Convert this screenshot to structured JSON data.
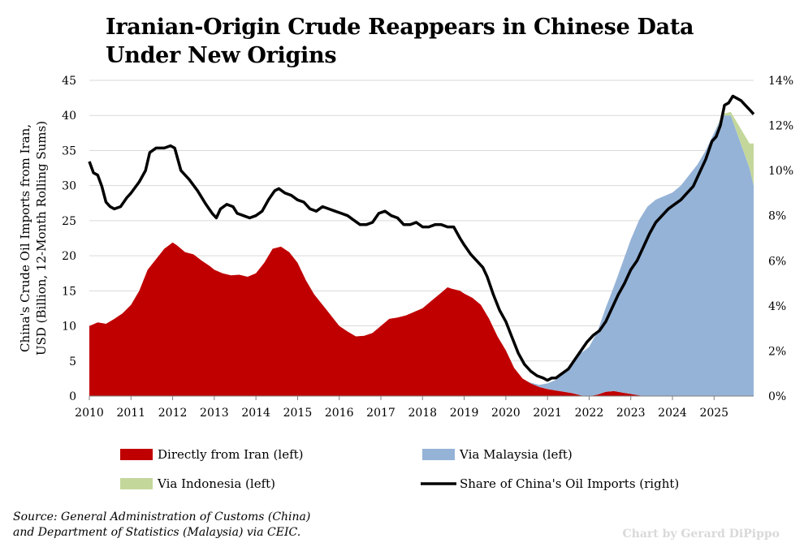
{
  "chart_data": {
    "type": "area",
    "title": "Iranian-Origin Crude Reappears in Chinese Data Under New Origins",
    "ylabel_left_line1": "China's Crude Oil Imports from Iran,",
    "ylabel_left_line2": "USD (Billion, 12-Month Rolling Sums)",
    "ylim_left": [
      0,
      45
    ],
    "ylim_right": [
      0,
      14
    ],
    "left_ticks": [
      "0",
      "5",
      "10",
      "15",
      "20",
      "25",
      "30",
      "35",
      "40",
      "45"
    ],
    "right_ticks": [
      "0%",
      "2%",
      "4%",
      "6%",
      "8%",
      "10%",
      "12%",
      "14%"
    ],
    "x_ticks": [
      "2010",
      "2011",
      "2012",
      "2013",
      "2014",
      "2015",
      "2016",
      "2017",
      "2018",
      "2019",
      "2020",
      "2021",
      "2022",
      "2023",
      "2024",
      "2025"
    ],
    "xlim": [
      2010.0,
      2025.95
    ],
    "grid": "horizontal",
    "legend_position": "bottom",
    "series": [
      {
        "name": "Directly from Iran (left)",
        "kind": "area",
        "axis": "left",
        "color": "#c00000",
        "x": [
          2010.0,
          2010.2,
          2010.4,
          2010.6,
          2010.8,
          2011.0,
          2011.2,
          2011.4,
          2011.6,
          2011.8,
          2012.0,
          2012.1,
          2012.3,
          2012.5,
          2012.7,
          2012.9,
          2013.0,
          2013.2,
          2013.4,
          2013.6,
          2013.8,
          2014.0,
          2014.2,
          2014.4,
          2014.6,
          2014.8,
          2015.0,
          2015.2,
          2015.4,
          2015.6,
          2015.8,
          2016.0,
          2016.2,
          2016.4,
          2016.6,
          2016.8,
          2017.0,
          2017.2,
          2017.4,
          2017.6,
          2017.8,
          2018.0,
          2018.2,
          2018.4,
          2018.6,
          2018.7,
          2018.9,
          2019.0,
          2019.2,
          2019.4,
          2019.6,
          2019.8,
          2020.0,
          2020.2,
          2020.4,
          2020.6,
          2020.8,
          2021.0,
          2021.2,
          2021.4,
          2021.6,
          2021.8,
          2022.0,
          2022.2,
          2022.4,
          2022.6,
          2022.8,
          2023.0,
          2023.2,
          2023.4,
          2024.0,
          2025.0,
          2025.95
        ],
        "values": [
          10.0,
          10.5,
          10.3,
          11.0,
          11.8,
          13.0,
          15.0,
          18.0,
          19.5,
          21.0,
          21.9,
          21.5,
          20.5,
          20.2,
          19.3,
          18.5,
          18.0,
          17.5,
          17.2,
          17.3,
          17.0,
          17.5,
          19.0,
          21.0,
          21.3,
          20.5,
          19.0,
          16.5,
          14.5,
          13.0,
          11.5,
          10.0,
          9.2,
          8.5,
          8.6,
          9.0,
          10.0,
          11.0,
          11.2,
          11.5,
          12.0,
          12.5,
          13.5,
          14.5,
          15.5,
          15.3,
          15.0,
          14.6,
          14.0,
          13.0,
          11.0,
          8.5,
          6.5,
          4.0,
          2.5,
          1.8,
          1.3,
          1.0,
          0.8,
          0.6,
          0.4,
          0.1,
          0.0,
          0.2,
          0.6,
          0.7,
          0.5,
          0.3,
          0.1,
          0.0,
          0.0,
          0.0,
          0.0
        ]
      },
      {
        "name": "Via Malaysia (left)",
        "kind": "area",
        "axis": "left",
        "color": "#95b3d7",
        "x": [
          2020.5,
          2020.8,
          2021.0,
          2021.2,
          2021.4,
          2021.6,
          2021.8,
          2022.0,
          2022.2,
          2022.4,
          2022.6,
          2022.8,
          2023.0,
          2023.2,
          2023.4,
          2023.6,
          2023.8,
          2024.0,
          2024.2,
          2024.4,
          2024.6,
          2024.8,
          2025.0,
          2025.2,
          2025.4,
          2025.55,
          2025.7,
          2025.85,
          2025.95
        ],
        "values": [
          0.0,
          0.3,
          0.8,
          1.5,
          2.8,
          4.5,
          6.0,
          7.0,
          9.0,
          12.0,
          15.0,
          18.5,
          22.0,
          25.0,
          27.0,
          28.0,
          28.5,
          29.0,
          30.0,
          31.5,
          33.0,
          35.0,
          37.5,
          40.0,
          40.0,
          37.5,
          35.0,
          32.5,
          30.0
        ]
      },
      {
        "name": "Via Indonesia (left)",
        "kind": "area",
        "axis": "left",
        "color": "#c4d79b",
        "x": [
          2025.0,
          2025.2,
          2025.4,
          2025.55,
          2025.7,
          2025.85,
          2025.95
        ],
        "values": [
          0.0,
          0.2,
          0.5,
          1.5,
          2.5,
          3.5,
          6.0
        ]
      },
      {
        "name": "Share of China's Oil Imports (right)",
        "kind": "line",
        "axis": "right",
        "unit": "%",
        "color": "#000000",
        "x": [
          2010.0,
          2010.1,
          2010.2,
          2010.3,
          2010.4,
          2010.5,
          2010.6,
          2010.75,
          2010.9,
          2011.0,
          2011.2,
          2011.35,
          2011.45,
          2011.6,
          2011.8,
          2011.95,
          2012.05,
          2012.2,
          2012.4,
          2012.6,
          2012.8,
          2012.95,
          2013.05,
          2013.15,
          2013.3,
          2013.45,
          2013.55,
          2013.7,
          2013.85,
          2014.0,
          2014.15,
          2014.3,
          2014.45,
          2014.55,
          2014.7,
          2014.85,
          2015.0,
          2015.15,
          2015.3,
          2015.45,
          2015.6,
          2015.75,
          2015.9,
          2016.05,
          2016.2,
          2016.35,
          2016.5,
          2016.65,
          2016.8,
          2016.95,
          2017.1,
          2017.25,
          2017.4,
          2017.55,
          2017.7,
          2017.85,
          2018.0,
          2018.15,
          2018.3,
          2018.45,
          2018.6,
          2018.75,
          2018.9,
          2019.0,
          2019.15,
          2019.3,
          2019.45,
          2019.55,
          2019.7,
          2019.85,
          2020.0,
          2020.15,
          2020.3,
          2020.45,
          2020.6,
          2020.75,
          2020.9,
          2021.0,
          2021.1,
          2021.2,
          2021.35,
          2021.5,
          2021.65,
          2021.8,
          2021.95,
          2022.1,
          2022.25,
          2022.4,
          2022.55,
          2022.7,
          2022.85,
          2023.0,
          2023.15,
          2023.3,
          2023.45,
          2023.6,
          2023.75,
          2023.9,
          2024.05,
          2024.2,
          2024.35,
          2024.5,
          2024.65,
          2024.8,
          2024.95,
          2025.05,
          2025.15,
          2025.25,
          2025.35,
          2025.45,
          2025.55,
          2025.65,
          2025.75,
          2025.85,
          2025.95
        ],
        "values": [
          10.4,
          9.9,
          9.8,
          9.3,
          8.6,
          8.4,
          8.3,
          8.4,
          8.8,
          9.0,
          9.5,
          10.0,
          10.8,
          11.0,
          11.0,
          11.1,
          11.0,
          10.0,
          9.6,
          9.1,
          8.5,
          8.1,
          7.9,
          8.3,
          8.5,
          8.4,
          8.1,
          8.0,
          7.9,
          8.0,
          8.2,
          8.7,
          9.1,
          9.2,
          9.0,
          8.9,
          8.7,
          8.6,
          8.3,
          8.2,
          8.4,
          8.3,
          8.2,
          8.1,
          8.0,
          7.8,
          7.6,
          7.6,
          7.7,
          8.1,
          8.2,
          8.0,
          7.9,
          7.6,
          7.6,
          7.7,
          7.5,
          7.5,
          7.6,
          7.6,
          7.5,
          7.5,
          7.0,
          6.7,
          6.3,
          6.0,
          5.7,
          5.3,
          4.5,
          3.8,
          3.3,
          2.6,
          1.9,
          1.4,
          1.1,
          0.9,
          0.8,
          0.7,
          0.8,
          0.8,
          1.0,
          1.2,
          1.6,
          2.0,
          2.4,
          2.7,
          2.9,
          3.3,
          3.9,
          4.5,
          5.0,
          5.6,
          6.0,
          6.6,
          7.2,
          7.7,
          8.0,
          8.3,
          8.5,
          8.7,
          9.0,
          9.3,
          9.9,
          10.5,
          11.3,
          11.5,
          12.0,
          12.9,
          13.0,
          13.3,
          13.2,
          13.1,
          12.9,
          12.7,
          12.5
        ]
      }
    ],
    "source_line1": "Source: General Administration of Customs (China)",
    "source_line2": "and Department of Statistics (Malaysia) via CEIC.",
    "credit": "Chart by Gerard DiPippo"
  }
}
